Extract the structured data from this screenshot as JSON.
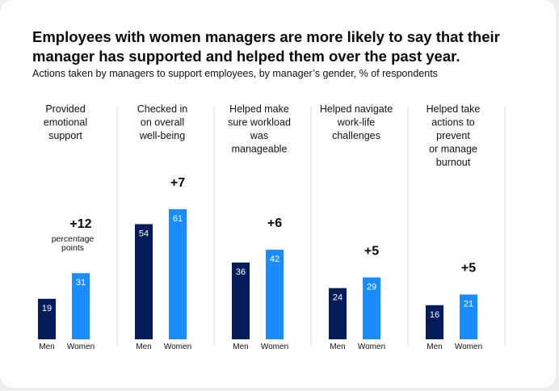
{
  "title": "Employees with women managers are more likely to say that their manager has supported and helped them over the past year.",
  "subtitle": "Actions taken by managers to support employees, by manager’s gender, % of respondents",
  "colors": {
    "men": "#051c5a",
    "women": "#1a8cff",
    "divider": "#d9d9d9",
    "text": "#111111"
  },
  "chart_data": {
    "type": "bar",
    "series_names": [
      "Men",
      "Women"
    ],
    "ylim": [
      0,
      70
    ],
    "groups": [
      {
        "category": [
          "Provided",
          "emotional",
          "support"
        ],
        "men": 19,
        "women": 31,
        "diff": "+12",
        "diff_note": [
          "percentage",
          "points"
        ]
      },
      {
        "category": [
          "Checked in",
          "on overall",
          "well-being"
        ],
        "men": 54,
        "women": 61,
        "diff": "+7"
      },
      {
        "category": [
          "Helped make",
          "sure workload",
          "was",
          "manageable"
        ],
        "men": 36,
        "women": 42,
        "diff": "+6"
      },
      {
        "category": [
          "Helped navigate",
          "work-life",
          "challenges"
        ],
        "men": 24,
        "women": 29,
        "diff": "+5"
      },
      {
        "category": [
          "Helped take",
          "actions to",
          "prevent",
          "or manage",
          "burnout"
        ],
        "men": 16,
        "women": 21,
        "diff": "+5"
      }
    ]
  }
}
